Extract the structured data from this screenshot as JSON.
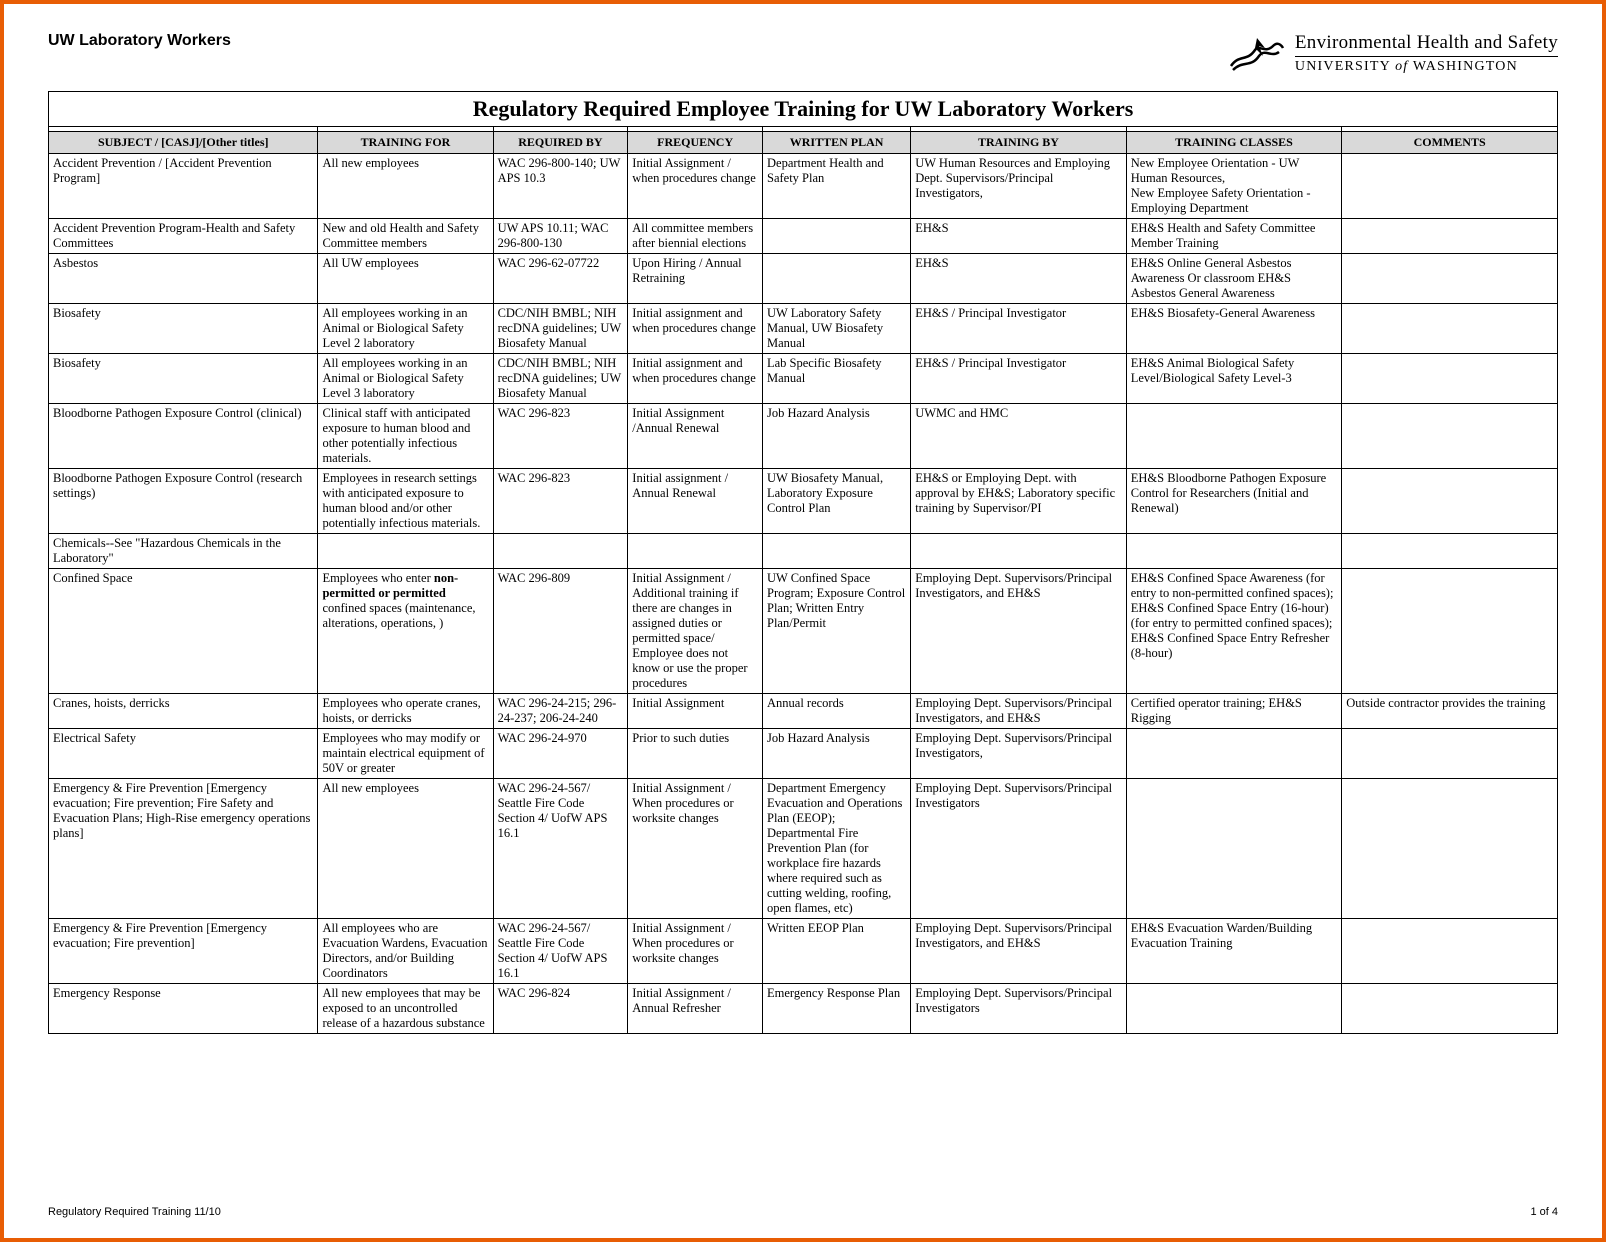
{
  "header": {
    "left_title": "UW Laboratory Workers",
    "org_line1": "Environmental Health and Safety",
    "org_line2": "UNIVERSITY of WASHINGTON"
  },
  "table": {
    "title": "Regulatory Required Employee Training for UW Laboratory Workers",
    "columns": [
      "SUBJECT / [CASJ]/[Other titles]",
      "TRAINING FOR",
      "REQUIRED BY",
      "FREQUENCY",
      "WRITTEN PLAN",
      "TRAINING BY",
      "TRAINING CLASSES",
      "COMMENTS"
    ],
    "col_widths": [
      "200",
      "130",
      "100",
      "100",
      "110",
      "160",
      "160",
      "160"
    ],
    "rows": [
      {
        "c": [
          "Accident Prevention / [Accident Prevention Program]",
          "All new employees",
          "WAC 296-800-140; UW APS 10.3",
          "Initial Assignment / when procedures change",
          "Department Health and Safety Plan",
          "UW Human Resources and Employing Dept. Supervisors/Principal Investigators,",
          "New Employee Orientation - UW Human Resources,\nNew Employee Safety Orientation - Employing Department",
          ""
        ]
      },
      {
        "c": [
          "Accident Prevention Program-Health and Safety Committees",
          "New and old Health and Safety Committee members",
          "UW APS 10.11; WAC 296-800-130",
          "All committee members after biennial elections",
          "",
          "EH&S",
          "EH&S Health and Safety Committee Member Training",
          ""
        ]
      },
      {
        "c": [
          "Asbestos",
          "All UW employees",
          "WAC 296-62-07722",
          "Upon Hiring / Annual Retraining",
          "",
          "EH&S",
          "EH&S Online General Asbestos Awareness Or classroom EH&S Asbestos General Awareness",
          ""
        ]
      },
      {
        "c": [
          "Biosafety",
          "All employees working in an Animal or Biological Safety Level 2 laboratory",
          "CDC/NIH BMBL; NIH recDNA guidelines; UW Biosafety Manual",
          "Initial assignment and when procedures change",
          "UW Laboratory Safety Manual, UW Biosafety Manual",
          "EH&S / Principal Investigator",
          "EH&S Biosafety-General Awareness",
          ""
        ]
      },
      {
        "c": [
          "Biosafety",
          "All employees working in an Animal or Biological Safety Level 3 laboratory",
          "CDC/NIH BMBL; NIH recDNA guidelines; UW Biosafety Manual",
          "Initial assignment and when procedures change",
          "Lab Specific Biosafety Manual",
          "EH&S / Principal Investigator",
          "EH&S Animal Biological Safety Level/Biological Safety Level-3",
          ""
        ]
      },
      {
        "c": [
          "Bloodborne Pathogen Exposure Control (clinical)",
          "Clinical staff with anticipated exposure to human blood and other potentially infectious materials.",
          "WAC 296-823",
          "Initial Assignment /Annual Renewal",
          "Job Hazard Analysis",
          "UWMC and HMC",
          "",
          ""
        ]
      },
      {
        "c": [
          "Bloodborne Pathogen Exposure Control (research settings)",
          "Employees in research settings with anticipated exposure to human blood and/or other potentially infectious materials.",
          "WAC 296-823",
          "Initial assignment / Annual Renewal",
          "UW Biosafety Manual, Laboratory Exposure Control Plan",
          "EH&S or Employing Dept. with approval by EH&S; Laboratory specific training by Supervisor/PI",
          "EH&S Bloodborne Pathogen Exposure Control for Researchers (Initial and Renewal)",
          ""
        ]
      },
      {
        "c": [
          "Chemicals--See \"Hazardous Chemicals in the Laboratory\"",
          "",
          "",
          "",
          "",
          "",
          "",
          ""
        ]
      },
      {
        "c": [
          "Confined Space",
          "Employees who enter non-permitted or permitted confined spaces (maintenance, alterations, operations, )",
          "WAC 296-809",
          "Initial Assignment / Additional training if there are changes in assigned duties or permitted space/ Employee does not know or use the proper procedures",
          "UW Confined Space Program; Exposure Control Plan; Written Entry Plan/Permit",
          "Employing Dept. Supervisors/Principal Investigators, and EH&S",
          "EH&S Confined Space Awareness (for entry to non-permitted confined spaces); EH&S Confined Space Entry (16-hour) (for entry to permitted confined spaces); EH&S Confined Space Entry Refresher (8-hour)",
          ""
        ],
        "bold_training": true
      },
      {
        "c": [
          "Cranes, hoists, derricks",
          "Employees who operate cranes, hoists, or derricks",
          "WAC 296-24-215; 296-24-237; 206-24-240",
          "Initial Assignment",
          "Annual records",
          "Employing Dept. Supervisors/Principal Investigators, and EH&S",
          "Certified operator training; EH&S Rigging",
          "Outside contractor provides the training"
        ]
      },
      {
        "c": [
          "Electrical Safety",
          "Employees who may modify or maintain electrical equipment of 50V or greater",
          "WAC 296-24-970",
          "Prior to such duties",
          "Job Hazard Analysis",
          "Employing Dept. Supervisors/Principal Investigators,",
          "",
          ""
        ]
      },
      {
        "c": [
          "Emergency & Fire Prevention [Emergency evacuation; Fire prevention; Fire Safety and Evacuation Plans; High-Rise emergency operations plans]",
          "All new employees",
          "WAC 296-24-567/ Seattle Fire Code Section 4/ UofW APS 16.1",
          "Initial Assignment / When procedures or worksite changes",
          "Department Emergency Evacuation and Operations Plan (EEOP); Departmental Fire Prevention Plan (for workplace fire hazards where required such as cutting welding, roofing, open flames, etc)",
          "Employing Dept. Supervisors/Principal Investigators",
          "",
          ""
        ]
      },
      {
        "c": [
          "Emergency & Fire Prevention [Emergency evacuation; Fire prevention]",
          "All employees who are Evacuation Wardens, Evacuation Directors, and/or Building Coordinators",
          "WAC 296-24-567/ Seattle Fire Code Section 4/ UofW APS 16.1",
          "Initial Assignment / When procedures or worksite changes",
          "Written EEOP Plan",
          "Employing Dept. Supervisors/Principal Investigators, and EH&S",
          "EH&S Evacuation Warden/Building Evacuation Training",
          ""
        ]
      },
      {
        "c": [
          "Emergency Response",
          "All new employees that may be exposed to an uncontrolled release of a hazardous substance",
          "WAC 296-824",
          "Initial Assignment / Annual Refresher",
          "Emergency Response Plan",
          "Employing Dept. Supervisors/Principal Investigators",
          "",
          ""
        ]
      }
    ]
  },
  "footer": {
    "left": "Regulatory Required Training 11/10",
    "right": "1 of 4"
  },
  "colors": {
    "border": "#e85d04",
    "header_bg": "#d9d9d9"
  }
}
